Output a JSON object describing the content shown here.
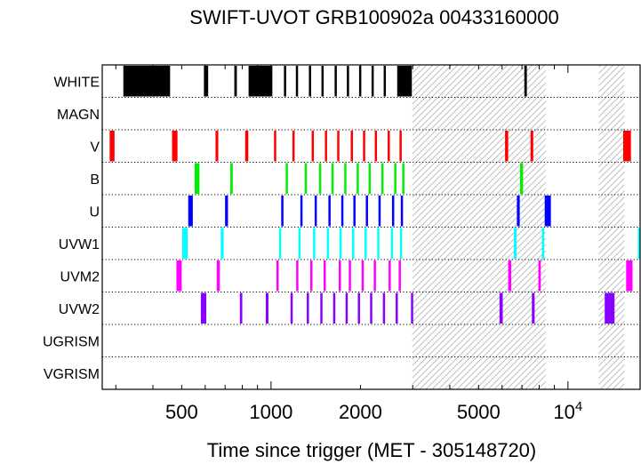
{
  "chart_data": {
    "type": "timeline",
    "title": "SWIFT-UVOT GRB100902a 00433160000",
    "xlabel": "Time since trigger (MET - 305148720)",
    "xscale": "log",
    "xlim": [
      270,
      17500
    ],
    "xticks": [
      {
        "value": 500,
        "label": "500"
      },
      {
        "value": 1000,
        "label": "1000"
      },
      {
        "value": 2000,
        "label": "2000"
      },
      {
        "value": 5000,
        "label": "5000"
      },
      {
        "value": 10000,
        "label": "10",
        "sup": "4"
      }
    ],
    "rows": [
      "WHITE",
      "MAGN",
      "V",
      "B",
      "U",
      "UVW1",
      "UVM2",
      "UVW2",
      "UGRISM",
      "VGRISM"
    ],
    "gaps": [
      [
        2990,
        8420
      ],
      [
        12700,
        15500
      ]
    ],
    "series": [
      {
        "name": "WHITE",
        "color": "#000000",
        "intervals": [
          [
            318,
            457
          ],
          [
            594,
            614
          ],
          [
            752,
            767
          ],
          [
            840,
            1010
          ],
          [
            1105,
            1120
          ],
          [
            1212,
            1224
          ],
          [
            1341,
            1356
          ],
          [
            1478,
            1490
          ],
          [
            1637,
            1648
          ],
          [
            1800,
            1813
          ],
          [
            1979,
            1994
          ],
          [
            2180,
            2193
          ],
          [
            2395,
            2410
          ],
          [
            2660,
            2980
          ],
          [
            7130,
            7270
          ]
        ]
      },
      {
        "name": "MAGN",
        "color": "#000000",
        "intervals": []
      },
      {
        "name": "V",
        "color": "#ff0000",
        "intervals": [
          [
            286,
            297
          ],
          [
            464,
            484
          ],
          [
            650,
            664
          ],
          [
            818,
            838
          ],
          [
            1023,
            1040
          ],
          [
            1180,
            1195
          ],
          [
            1370,
            1382
          ],
          [
            1518,
            1530
          ],
          [
            1670,
            1682
          ],
          [
            1855,
            1865
          ],
          [
            2040,
            2052
          ],
          [
            2235,
            2247
          ],
          [
            2470,
            2484
          ],
          [
            2708,
            2720
          ],
          [
            6140,
            6290
          ],
          [
            7480,
            7640
          ],
          [
            15350,
            16300
          ]
        ]
      },
      {
        "name": "B",
        "color": "#00ee00",
        "intervals": [
          [
            553,
            574
          ],
          [
            729,
            743
          ],
          [
            1120,
            1136
          ],
          [
            1298,
            1310
          ],
          [
            1450,
            1463
          ],
          [
            1597,
            1609
          ],
          [
            1764,
            1776
          ],
          [
            1942,
            1955
          ],
          [
            2130,
            2142
          ],
          [
            2352,
            2364
          ],
          [
            2598,
            2610
          ],
          [
            2765,
            2777
          ],
          [
            6900,
            7060
          ]
        ]
      },
      {
        "name": "U",
        "color": "#0000ff",
        "intervals": [
          [
            526,
            545
          ],
          [
            700,
            716
          ],
          [
            1082,
            1098
          ],
          [
            1255,
            1267
          ],
          [
            1402,
            1414
          ],
          [
            1560,
            1571
          ],
          [
            1723,
            1735
          ],
          [
            1893,
            1905
          ],
          [
            2085,
            2097
          ],
          [
            2300,
            2312
          ],
          [
            2555,
            2567
          ],
          [
            2735,
            2747
          ],
          [
            6730,
            6880
          ],
          [
            8350,
            8760
          ]
        ]
      },
      {
        "name": "UVW1",
        "color": "#00ffff",
        "intervals": [
          [
            502,
            524
          ],
          [
            677,
            692
          ],
          [
            1064,
            1080
          ],
          [
            1236,
            1248
          ],
          [
            1385,
            1397
          ],
          [
            1541,
            1553
          ],
          [
            1700,
            1712
          ],
          [
            1874,
            1886
          ],
          [
            2065,
            2077
          ],
          [
            2278,
            2290
          ],
          [
            2532,
            2544
          ],
          [
            2718,
            2730
          ],
          [
            6570,
            6710
          ],
          [
            8170,
            8320
          ],
          [
            17300,
            17500
          ]
        ]
      },
      {
        "name": "UVM2",
        "color": "#ff00ff",
        "intervals": [
          [
            480,
            500
          ],
          [
            656,
            672
          ],
          [
            1043,
            1060
          ],
          [
            1215,
            1229
          ],
          [
            1355,
            1368
          ],
          [
            1503,
            1515
          ],
          [
            1690,
            1700
          ],
          [
            1827,
            1840
          ],
          [
            2018,
            2030
          ],
          [
            2217,
            2229
          ],
          [
            2488,
            2500
          ],
          [
            2690,
            2702
          ],
          [
            6290,
            6440
          ],
          [
            7950,
            8100
          ],
          [
            15700,
            16500
          ]
        ]
      },
      {
        "name": "UVW2",
        "color": "#8800ff",
        "intervals": [
          [
            580,
            605
          ],
          [
            785,
            800
          ],
          [
            960,
            980
          ],
          [
            1163,
            1178
          ],
          [
            1319,
            1331
          ],
          [
            1465,
            1477
          ],
          [
            1618,
            1630
          ],
          [
            1782,
            1794
          ],
          [
            1960,
            1972
          ],
          [
            2155,
            2167
          ],
          [
            2380,
            2392
          ],
          [
            2628,
            2640
          ],
          [
            2960,
            3010
          ],
          [
            5880,
            6030
          ],
          [
            7560,
            7720
          ],
          [
            13300,
            14350
          ]
        ]
      },
      {
        "name": "UGRISM",
        "color": "#000000",
        "intervals": []
      },
      {
        "name": "VGRISM",
        "color": "#000000",
        "intervals": []
      }
    ]
  }
}
